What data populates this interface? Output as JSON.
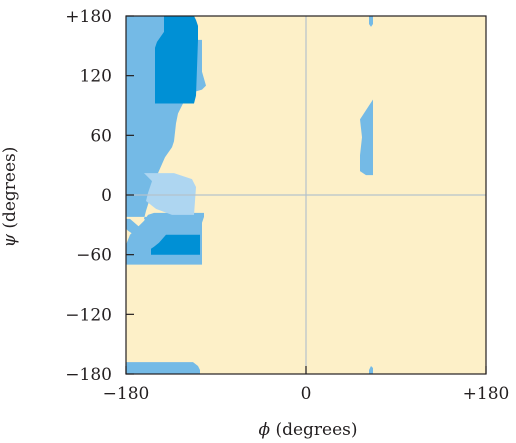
{
  "chart_data": {
    "type": "heatmap",
    "title": "",
    "xlabel_symbol": "ϕ",
    "xlabel_unit": "(degrees)",
    "ylabel_symbol": "ψ",
    "ylabel_unit": "(degrees)",
    "xlim": [
      -180,
      180
    ],
    "ylim": [
      -180,
      180
    ],
    "x_ticks": [
      {
        "value": -180,
        "label": "−180"
      },
      {
        "value": 0,
        "label": "0"
      },
      {
        "value": 180,
        "label": "+180"
      }
    ],
    "y_ticks": [
      {
        "value": 180,
        "label": "+180"
      },
      {
        "value": 120,
        "label": "120"
      },
      {
        "value": 60,
        "label": "60"
      },
      {
        "value": 0,
        "label": "0"
      },
      {
        "value": -60,
        "label": "−60"
      },
      {
        "value": -120,
        "label": "−120"
      },
      {
        "value": -180,
        "label": "−180"
      }
    ],
    "reference_lines": {
      "x": 0,
      "y": 0
    },
    "colors": {
      "background": "#fdf0c8",
      "allowed": "#74bae6",
      "bridge": "#aed6f1",
      "core": "#0090d5",
      "refline": "#b5c2cc",
      "frame": "#231f20"
    },
    "regions": [
      {
        "level": "allowed",
        "polygon": [
          [
            -180,
            180
          ],
          [
            -138,
            180
          ],
          [
            -138,
            178
          ],
          [
            -122,
            178
          ],
          [
            -122,
            156
          ],
          [
            -104,
            156
          ],
          [
            -104,
            124
          ],
          [
            -100,
            110
          ],
          [
            -104,
            106
          ],
          [
            -121,
            101
          ],
          [
            -122,
            94
          ],
          [
            -128,
            82
          ],
          [
            -130,
            72
          ],
          [
            -132,
            54
          ],
          [
            -134,
            48
          ],
          [
            -141,
            38
          ],
          [
            -148,
            22
          ],
          [
            -152,
            10
          ],
          [
            -155,
            0
          ],
          [
            -160,
            -16
          ],
          [
            -162,
            -24
          ],
          [
            -156,
            -29
          ],
          [
            -150,
            -32
          ],
          [
            -143,
            -32
          ],
          [
            -141,
            -29
          ],
          [
            -138,
            -24
          ],
          [
            -128,
            -22
          ],
          [
            -178,
            -22
          ],
          [
            -180,
            -22
          ]
        ]
      },
      {
        "level": "allowed",
        "polygon": [
          [
            -180,
            -24
          ],
          [
            -176,
            -24
          ],
          [
            -160,
            -38
          ],
          [
            -152,
            -44
          ],
          [
            -150,
            -46
          ],
          [
            -144,
            -50
          ],
          [
            -150,
            -50
          ],
          [
            -172,
            -40
          ],
          [
            -178,
            -36
          ],
          [
            -180,
            -34
          ]
        ]
      },
      {
        "level": "allowed",
        "polygon": [
          [
            -180,
            -50
          ],
          [
            -176,
            -40
          ],
          [
            -162,
            -26
          ],
          [
            -158,
            -20
          ],
          [
            -152,
            -18
          ],
          [
            -140,
            -18
          ],
          [
            -102,
            -18
          ],
          [
            -102,
            -22
          ],
          [
            -104,
            -28
          ],
          [
            -104,
            -70
          ],
          [
            -180,
            -70
          ]
        ]
      },
      {
        "level": "allowed",
        "polygon": [
          [
            -180,
            -168
          ],
          [
            -113,
            -168
          ],
          [
            -108,
            -172
          ],
          [
            -106,
            -176
          ],
          [
            -106,
            -180
          ],
          [
            -180,
            -180
          ]
        ]
      },
      {
        "level": "allowed",
        "polygon": [
          [
            63,
            180
          ],
          [
            63,
            172
          ],
          [
            65,
            169
          ],
          [
            67,
            172
          ],
          [
            67,
            180
          ]
        ]
      },
      {
        "level": "allowed",
        "polygon": [
          [
            63,
            -180
          ],
          [
            63,
            -176
          ],
          [
            65,
            -172
          ],
          [
            67,
            -174
          ],
          [
            67,
            -180
          ]
        ]
      },
      {
        "level": "allowed",
        "polygon": [
          [
            54,
            76
          ],
          [
            67,
            96
          ],
          [
            67,
            20
          ],
          [
            60,
            20
          ],
          [
            54,
            24
          ],
          [
            54,
            40
          ],
          [
            56,
            58
          ]
        ]
      },
      {
        "level": "bridge",
        "polygon": [
          [
            -162,
            22
          ],
          [
            -150,
            22
          ],
          [
            -132,
            22
          ],
          [
            -120,
            18
          ],
          [
            -114,
            16
          ],
          [
            -112,
            12
          ],
          [
            -110,
            8
          ],
          [
            -112,
            -20
          ],
          [
            -134,
            -20
          ],
          [
            -150,
            -14
          ],
          [
            -160,
            -6
          ],
          [
            -158,
            2
          ],
          [
            -154,
            14
          ]
        ]
      },
      {
        "level": "core",
        "polygon": [
          [
            -160,
            180
          ],
          [
            -112,
            180
          ],
          [
            -110,
            176
          ],
          [
            -108,
            170
          ],
          [
            -108,
            156
          ],
          [
            -110,
            100
          ],
          [
            -112,
            92
          ],
          [
            -151,
            92
          ],
          [
            -151,
            148
          ],
          [
            -149,
            154
          ],
          [
            -142,
            164
          ],
          [
            -142,
            180
          ]
        ]
      },
      {
        "level": "core",
        "polygon": [
          [
            -155,
            -54
          ],
          [
            -155,
            -60
          ],
          [
            -106,
            -60
          ],
          [
            -106,
            -40
          ],
          [
            -140,
            -40
          ],
          [
            -147,
            -48
          ],
          [
            -152,
            -52
          ]
        ]
      }
    ]
  }
}
